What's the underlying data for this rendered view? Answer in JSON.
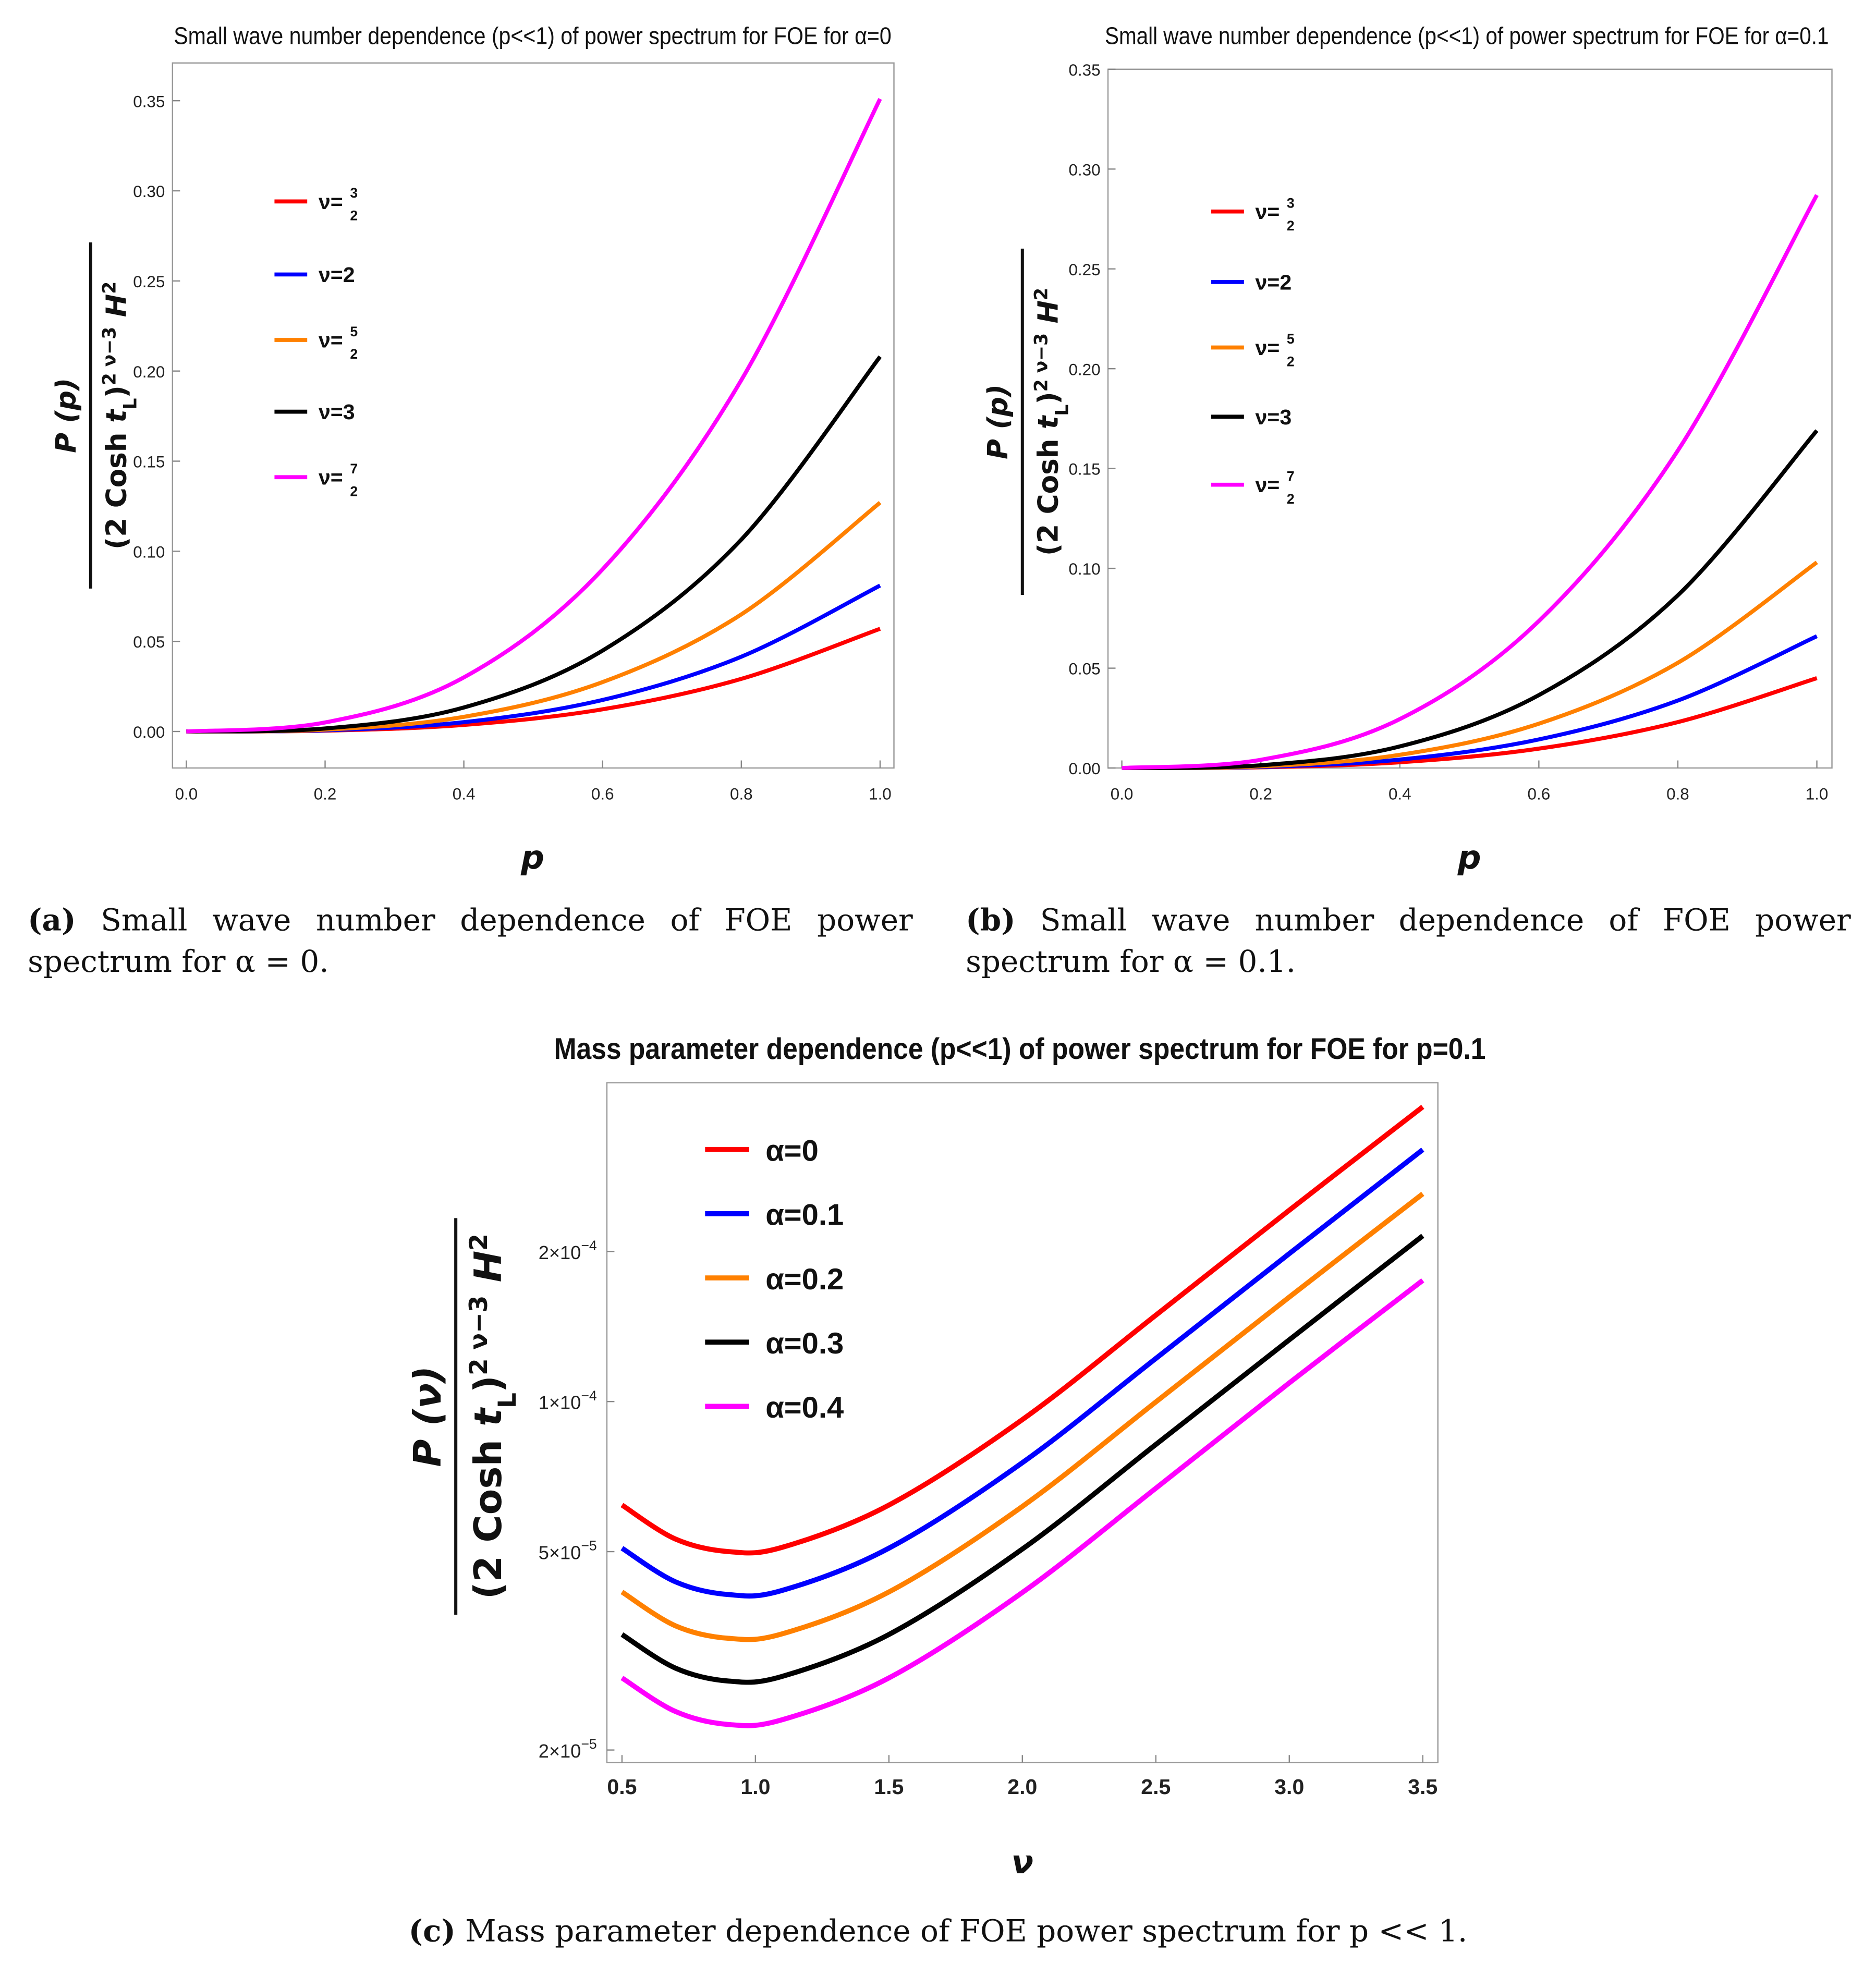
{
  "colors": {
    "red": "#ff0000",
    "blue": "#0000ff",
    "orange": "#ff8000",
    "black": "#000000",
    "magenta": "#ff00ff"
  },
  "chart_data": [
    {
      "type": "line",
      "title": "Small wave number dependence (p<<1) of power spectrum for FOE for α=0",
      "xlabel": "p",
      "ylabel": {
        "num": "P (p)",
        "den": [
          {
            "t": "(2 Cosh "
          },
          {
            "t": "t",
            "i": true
          },
          {
            "t": "L",
            "sub": true
          },
          {
            "t": ")"
          },
          {
            "t": "2 ν−3",
            "sup": true
          },
          {
            "t": " H",
            "i": true
          },
          {
            "t": "2",
            "sup": true
          }
        ]
      },
      "xlim": [
        0,
        1
      ],
      "ylim": [
        0,
        0.35
      ],
      "xticks": [
        "0.0",
        "0.2",
        "0.4",
        "0.6",
        "0.8",
        "1.0"
      ],
      "yticks": [
        "0.00",
        "0.05",
        "0.10",
        "0.15",
        "0.20",
        "0.25",
        "0.30",
        "0.35"
      ],
      "legend_position": "top-left",
      "x": [
        0,
        0.2,
        0.4,
        0.6,
        0.8,
        1.0
      ],
      "series": [
        {
          "name": "ν=3/2",
          "label": {
            "prefix": "ν=",
            "num": "3",
            "den": "2"
          },
          "color": "#ff0000",
          "values": [
            0,
            0.00046,
            0.00365,
            0.0123,
            0.0292,
            0.057
          ]
        },
        {
          "name": "ν=2",
          "label": {
            "prefix": "ν=2"
          },
          "color": "#0000ff",
          "values": [
            0,
            0.00065,
            0.00518,
            0.0175,
            0.0415,
            0.081
          ]
        },
        {
          "name": "ν=5/2",
          "label": {
            "prefix": "ν=",
            "num": "5",
            "den": "2"
          },
          "color": "#ff8000",
          "values": [
            0,
            0.00102,
            0.00813,
            0.0274,
            0.065,
            0.127
          ]
        },
        {
          "name": "ν=3",
          "label": {
            "prefix": "ν=3"
          },
          "color": "#000000",
          "values": [
            0,
            0.00166,
            0.0133,
            0.0449,
            0.1065,
            0.208
          ]
        },
        {
          "name": "ν=7/2",
          "label": {
            "prefix": "ν=",
            "num": "7",
            "den": "2"
          },
          "color": "#ff00ff",
          "values": [
            0,
            0.005,
            0.03,
            0.09,
            0.195,
            0.351
          ]
        }
      ],
      "caption": {
        "label": "(a)",
        "text": "Small wave number dependence of FOE power spectrum for α = 0."
      }
    },
    {
      "type": "line",
      "title": "Small wave number dependence (p<<1) of power spectrum for FOE for α=0.1",
      "xlabel": "p",
      "ylabel": {
        "num": "P (p)",
        "den": [
          {
            "t": "(2 Cosh "
          },
          {
            "t": "t",
            "i": true
          },
          {
            "t": "L",
            "sub": true
          },
          {
            "t": ")"
          },
          {
            "t": "2 ν−3",
            "sup": true
          },
          {
            "t": " H",
            "i": true
          },
          {
            "t": "2",
            "sup": true
          }
        ]
      },
      "xlim": [
        0,
        1
      ],
      "ylim": [
        0,
        0.35
      ],
      "xticks": [
        "0.0",
        "0.2",
        "0.4",
        "0.6",
        "0.8",
        "1.0"
      ],
      "yticks": [
        "0.00",
        "0.05",
        "0.10",
        "0.15",
        "0.20",
        "0.25",
        "0.30",
        "0.35"
      ],
      "legend_position": "top-left",
      "x": [
        0,
        0.2,
        0.4,
        0.6,
        0.8,
        1.0
      ],
      "series": [
        {
          "name": "ν=3/2",
          "label": {
            "prefix": "ν=",
            "num": "3",
            "den": "2"
          },
          "color": "#ff0000",
          "values": [
            0,
            0.00036,
            0.00288,
            0.0097,
            0.023,
            0.045
          ]
        },
        {
          "name": "ν=2",
          "label": {
            "prefix": "ν=2"
          },
          "color": "#0000ff",
          "values": [
            0,
            0.00053,
            0.00422,
            0.0143,
            0.0338,
            0.066
          ]
        },
        {
          "name": "ν=5/2",
          "label": {
            "prefix": "ν=",
            "num": "5",
            "den": "2"
          },
          "color": "#ff8000",
          "values": [
            0,
            0.00082,
            0.0066,
            0.0222,
            0.0527,
            0.103
          ]
        },
        {
          "name": "ν=3",
          "label": {
            "prefix": "ν=3"
          },
          "color": "#000000",
          "values": [
            0,
            0.00135,
            0.0108,
            0.0365,
            0.0865,
            0.169
          ]
        },
        {
          "name": "ν=7/2",
          "label": {
            "prefix": "ν=",
            "num": "7",
            "den": "2"
          },
          "color": "#ff00ff",
          "values": [
            0,
            0.0041,
            0.0245,
            0.0736,
            0.159,
            0.287
          ]
        }
      ],
      "caption": {
        "label": "(b)",
        "text": "Small wave number dependence of FOE power spectrum for α = 0.1."
      }
    },
    {
      "type": "line",
      "title": "Mass parameter dependence (p<<1) of power spectrum for FOE for p=0.1",
      "xlabel": "ν",
      "ylabel": {
        "num": "P (ν)",
        "den": [
          {
            "t": "(2 Cosh "
          },
          {
            "t": "t",
            "i": true
          },
          {
            "t": "L",
            "sub": true
          },
          {
            "t": ")"
          },
          {
            "t": "2 ν−3",
            "sup": true
          },
          {
            "t": " H",
            "i": true
          },
          {
            "t": "2",
            "sup": true
          }
        ]
      },
      "xlim": [
        0.5,
        3.5
      ],
      "yscale": "log",
      "xticks": [
        "0.5",
        "1.0",
        "1.5",
        "2.0",
        "2.5",
        "3.0",
        "3.5"
      ],
      "yticks": [
        {
          "value": 2e-05,
          "mant": "2×10",
          "exp": "−5"
        },
        {
          "value": 5e-05,
          "mant": "5×10",
          "exp": "−5"
        },
        {
          "value": 0.0001,
          "mant": "1×10",
          "exp": "−4"
        },
        {
          "value": 0.0002,
          "mant": "2×10",
          "exp": "−4"
        }
      ],
      "legend_position": "top-left",
      "x": [
        0.5,
        0.7,
        0.9,
        1.1,
        1.5,
        2.0,
        2.5,
        3.0,
        3.5
      ],
      "series": [
        {
          "name": "α=0",
          "label": {
            "prefix": "α=0"
          },
          "color": "#ff0000",
          "values": [
            6.2e-05,
            5.3e-05,
            5e-05,
            5.1e-05,
            6.2e-05,
            9.2e-05,
            0.000149,
            0.000242,
            0.00039
          ]
        },
        {
          "name": "α=0.1",
          "label": {
            "prefix": "α=0.1"
          },
          "color": "#0000ff",
          "values": [
            5.08e-05,
            4.35e-05,
            4.1e-05,
            4.18e-05,
            5.08e-05,
            7.54e-05,
            0.000122,
            0.000198,
            0.00032
          ]
        },
        {
          "name": "α=0.2",
          "label": {
            "prefix": "α=0.2"
          },
          "color": "#ff8000",
          "values": [
            4.15e-05,
            3.55e-05,
            3.35e-05,
            3.42e-05,
            4.15e-05,
            6.16e-05,
            9.98e-05,
            0.000162,
            0.000261
          ]
        },
        {
          "name": "α=0.3",
          "label": {
            "prefix": "α=0.3"
          },
          "color": "#000000",
          "values": [
            3.41e-05,
            2.92e-05,
            2.75e-05,
            2.81e-05,
            3.41e-05,
            5.06e-05,
            8.2e-05,
            0.000133,
            0.000215
          ]
        },
        {
          "name": "α=0.4",
          "label": {
            "prefix": "α=0.4"
          },
          "color": "#ff00ff",
          "values": [
            2.79e-05,
            2.39e-05,
            2.25e-05,
            2.3e-05,
            2.79e-05,
            4.14e-05,
            6.7e-05,
            0.000109,
            0.000175
          ]
        }
      ],
      "caption": {
        "label": "(c)",
        "text": "Mass parameter dependence of FOE power spectrum for p << 1."
      }
    }
  ]
}
